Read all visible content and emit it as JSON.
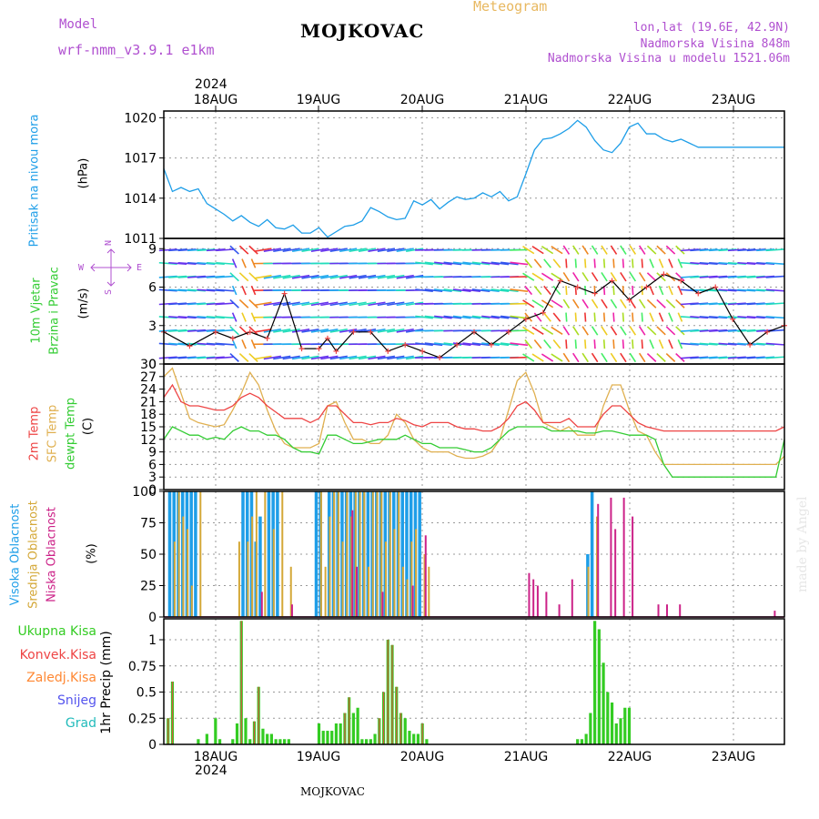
{
  "header": {
    "model_label": "Model",
    "model_name": "wrf-nmm_v3.9.1 e1km",
    "title": "MOJKOVAC",
    "subtitle": "Meteogram",
    "lonlat": "lon,lat (19.6E, 42.9N)",
    "elevation": "Nadmorska Visina 848m",
    "model_elevation": "Nadmorska Visina u modelu 1521.06m",
    "year": "2024"
  },
  "footer": {
    "station": "MOJKOVAC",
    "year": "2024",
    "credit": "made by Angel"
  },
  "colors": {
    "pressure": "#1e9ee8",
    "temp2m": "#ee4444",
    "sfc_temp": "#e0b050",
    "dewpoint": "#33cc33",
    "high_cloud": "#1e9ee8",
    "mid_cloud": "#d4a838",
    "low_cloud": "#cc2288",
    "wind_line": "#000000",
    "wind_cross": "#ee4444",
    "precip_total": "#33cc22",
    "precip_conv": "#ee4444",
    "precip_frz": "#ff8833",
    "snow": "#5555ee",
    "hail": "#22bbbb",
    "text_purple": "#b050d0",
    "text_orange": "#e8b860"
  },
  "panels": {
    "pressure": {
      "label": "Pritisak na nivou mora",
      "unit": "(hPa)"
    },
    "wind": {
      "label1": "10m Vjetar",
      "label2": "Brzina i Pravac",
      "unit": "(m/s)",
      "compass_n": "N",
      "compass_s": "S",
      "compass_w": "W",
      "compass_e": "E"
    },
    "temp": {
      "label1": "2m Temp",
      "label2": "SFC Temp",
      "label3": "dewpt Temp",
      "unit": "(C)"
    },
    "cloud": {
      "label1": "Visoka Oblacnost",
      "label2": "Srednja Oblacnost",
      "label3": "Niska Oblacnost",
      "unit": "(%)"
    },
    "precip": {
      "axis_label": "1hr Precip (mm)",
      "legend": [
        "Ukupna Kisa",
        "Konvek.Kisa",
        "Zaledj.Kisa",
        "Snijeg",
        "Grad"
      ]
    }
  },
  "chart_data": [
    {
      "type": "line",
      "name": "pressure",
      "x_labels": [
        "18AUG",
        "19AUG",
        "20AUG",
        "21AUG",
        "22AUG",
        "23AUG"
      ],
      "ylabel": "(hPa)",
      "ylim": [
        1011,
        1020.5
      ],
      "yticks": [
        1011,
        1014,
        1017,
        1020
      ],
      "grid": true,
      "x_range_hours": [
        0,
        144
      ],
      "x": [
        0,
        2,
        4,
        6,
        8,
        10,
        12,
        14,
        16,
        18,
        20,
        22,
        24,
        26,
        28,
        30,
        32,
        34,
        36,
        38,
        40,
        42,
        44,
        46,
        48,
        50,
        52,
        54,
        56,
        58,
        60,
        62,
        64,
        66,
        68,
        70,
        72,
        74,
        76,
        78,
        80,
        82,
        84,
        86,
        88,
        90,
        92,
        94,
        96,
        98,
        100,
        102,
        104,
        106,
        108,
        110,
        112,
        114,
        116,
        118,
        120,
        122,
        124,
        126,
        128,
        130,
        132,
        134,
        136,
        138,
        140,
        142,
        144
      ],
      "values": [
        1016.2,
        1014.5,
        1014.8,
        1014.5,
        1014.7,
        1013.6,
        1013.2,
        1012.8,
        1012.3,
        1012.7,
        1012.2,
        1011.9,
        1012.4,
        1011.8,
        1011.7,
        1012.0,
        1011.4,
        1011.4,
        1011.8,
        1011.1,
        1011.5,
        1011.9,
        1012.0,
        1012.3,
        1013.3,
        1013.0,
        1012.6,
        1012.4,
        1012.5,
        1013.8,
        1013.5,
        1013.9,
        1013.2,
        1013.7,
        1014.1,
        1013.9,
        1014.0,
        1014.4,
        1014.1,
        1014.5,
        1013.8,
        1014.1,
        1015.8,
        1017.6,
        1018.4,
        1018.5,
        1018.8,
        1019.2,
        1019.8,
        1019.3,
        1018.3,
        1017.6,
        1017.4,
        1018.1,
        1019.3,
        1019.6,
        1018.8,
        1018.8,
        1018.4,
        1018.2,
        1018.4,
        1018.1,
        1017.8,
        1017.8,
        1017.8,
        1017.8,
        1017.8,
        1017.8,
        1017.8,
        1017.8,
        1017.8,
        1017.8,
        1017.8
      ]
    },
    {
      "type": "line",
      "name": "wind",
      "ylabel": "(m/s)",
      "ylim": [
        0,
        9.8
      ],
      "yticks": [
        0,
        3,
        6,
        9
      ],
      "grid": true,
      "x_range_hours": [
        0,
        144
      ],
      "series": [
        {
          "name": "wind_speed",
          "x": [
            0,
            6,
            12,
            16,
            20,
            24,
            28,
            32,
            36,
            38,
            40,
            44,
            48,
            52,
            56,
            60,
            64,
            68,
            72,
            76,
            80,
            84,
            88,
            92,
            96,
            100,
            104,
            108,
            112,
            116,
            120,
            124,
            128,
            132,
            136,
            140,
            144
          ],
          "values": [
            2.5,
            1.4,
            2.5,
            2.0,
            2.5,
            2.0,
            5.5,
            1.2,
            1.2,
            2.0,
            1.0,
            2.5,
            2.5,
            1.0,
            1.5,
            1.0,
            0.5,
            1.5,
            2.5,
            1.5,
            2.5,
            3.5,
            4.0,
            6.5,
            6.0,
            5.5,
            6.5,
            5.0,
            6.0,
            7.0,
            6.5,
            5.5,
            6.0,
            3.5,
            1.5,
            2.5,
            3.0
          ]
        }
      ]
    },
    {
      "type": "line",
      "name": "temperature",
      "ylabel": "(C)",
      "ylim": [
        0,
        30
      ],
      "yticks": [
        0,
        3,
        6,
        9,
        12,
        15,
        18,
        21,
        24,
        27,
        30
      ],
      "grid": true,
      "x_range_hours": [
        0,
        144
      ],
      "x": [
        0,
        2,
        4,
        6,
        8,
        10,
        12,
        14,
        16,
        18,
        20,
        22,
        24,
        26,
        28,
        30,
        32,
        34,
        36,
        38,
        40,
        42,
        44,
        46,
        48,
        50,
        52,
        54,
        56,
        58,
        60,
        62,
        64,
        66,
        68,
        70,
        72,
        74,
        76,
        78,
        80,
        82,
        84,
        86,
        88,
        90,
        92,
        94,
        96,
        98,
        100,
        102,
        104,
        106,
        108,
        110,
        112,
        114,
        116,
        118,
        120,
        122,
        124,
        126,
        128,
        130,
        132,
        134,
        136,
        138,
        140,
        142,
        144
      ],
      "series": [
        {
          "name": "2m_temp",
          "values": [
            22,
            25,
            21,
            20,
            20,
            19.5,
            19,
            19,
            20,
            22,
            23,
            22,
            20,
            18.5,
            17,
            17,
            17,
            16,
            17,
            20,
            20,
            18,
            16,
            16,
            15.5,
            16,
            16,
            17,
            16.5,
            15.5,
            15,
            16,
            16,
            16,
            15,
            14.5,
            14.5,
            14,
            14,
            15,
            17,
            20,
            21,
            19,
            16,
            16,
            16,
            17,
            15,
            15,
            15,
            18,
            20,
            20,
            18,
            16,
            15,
            14.5,
            14,
            14,
            14,
            14,
            14,
            14,
            14,
            14,
            14,
            14,
            14,
            14,
            14,
            14,
            15
          ]
        },
        {
          "name": "sfc_temp",
          "values": [
            27,
            29,
            23,
            17,
            16,
            15.5,
            15,
            15.5,
            19,
            23,
            28,
            25,
            19,
            14,
            11,
            10,
            10,
            10,
            11,
            20,
            21,
            16,
            12,
            12,
            11,
            11,
            13,
            18,
            16,
            12,
            10,
            9,
            9,
            9,
            8,
            7.5,
            7.5,
            8,
            9,
            12,
            19,
            26,
            28,
            23,
            16,
            15,
            14,
            15,
            13,
            13,
            13,
            20,
            25,
            25,
            19,
            14,
            13,
            9,
            6,
            6,
            6,
            6,
            6,
            6,
            6,
            6,
            6,
            6,
            6,
            6,
            6,
            6,
            8
          ]
        },
        {
          "name": "dewpt_temp",
          "values": [
            12,
            15,
            14,
            13,
            13,
            12,
            12.5,
            12,
            14,
            15,
            14,
            14,
            13,
            13,
            12,
            10,
            9,
            9,
            8.5,
            13,
            13,
            12,
            11,
            11,
            11.5,
            12,
            12,
            12,
            13,
            12,
            11,
            11,
            10,
            10,
            10,
            9.5,
            9,
            9,
            10,
            12,
            14,
            15,
            15,
            15,
            15,
            14,
            14,
            14,
            14,
            13.5,
            13.5,
            14,
            14,
            13.5,
            13,
            13,
            13,
            12,
            6,
            3,
            3,
            3,
            3,
            3,
            3,
            3,
            3,
            3,
            3,
            3,
            3,
            3,
            12
          ]
        }
      ]
    },
    {
      "type": "bar",
      "name": "cloud_cover",
      "ylabel": "(%)",
      "ylim": [
        0,
        100
      ],
      "yticks": [
        0,
        25,
        50,
        75,
        100
      ],
      "grid": true,
      "x_range_hours": [
        0,
        144
      ],
      "series": [
        {
          "name": "visoka_oblacnost",
          "x": [
            1,
            2,
            3,
            4,
            5,
            6,
            7,
            18,
            19,
            20,
            21,
            22,
            24,
            25,
            26,
            35,
            36,
            38,
            39,
            40,
            41,
            42,
            43,
            44,
            45,
            46,
            47,
            48,
            49,
            50,
            51,
            52,
            53,
            54,
            55,
            56,
            57,
            58,
            59,
            98,
            99
          ],
          "values": [
            100,
            100,
            100,
            100,
            100,
            100,
            100,
            100,
            100,
            100,
            60,
            80,
            100,
            100,
            100,
            100,
            100,
            100,
            100,
            100,
            100,
            100,
            100,
            100,
            100,
            100,
            100,
            100,
            100,
            100,
            100,
            100,
            100,
            100,
            100,
            100,
            100,
            100,
            100,
            50,
            100
          ]
        },
        {
          "name": "srednja_oblacnost",
          "x": [
            2,
            3,
            4,
            5,
            6,
            8,
            17,
            19,
            20,
            21,
            23,
            25,
            27,
            29,
            36,
            37,
            38,
            39,
            40,
            41,
            42,
            43,
            44,
            45,
            46,
            47,
            48,
            49,
            50,
            51,
            52,
            53,
            54,
            55,
            56,
            57,
            58,
            60,
            61,
            98,
            100
          ],
          "values": [
            60,
            100,
            80,
            70,
            25,
            100,
            60,
            60,
            80,
            100,
            100,
            70,
            100,
            40,
            100,
            40,
            80,
            100,
            100,
            60,
            100,
            80,
            100,
            100,
            100,
            40,
            100,
            100,
            100,
            60,
            100,
            70,
            100,
            40,
            30,
            60,
            70,
            50,
            40,
            40,
            80
          ]
        },
        {
          "name": "niska_oblacnost",
          "x": [
            22,
            29,
            43,
            44,
            50,
            57,
            60,
            84,
            85,
            86,
            88,
            91,
            94,
            100,
            103,
            104,
            106,
            108,
            114,
            116,
            119,
            141
          ],
          "values": [
            20,
            10,
            85,
            40,
            20,
            25,
            65,
            35,
            30,
            25,
            20,
            10,
            30,
            90,
            95,
            70,
            95,
            80,
            10,
            10,
            10,
            5
          ]
        }
      ]
    },
    {
      "type": "bar",
      "name": "precipitation",
      "ylabel": "1hr Precip (mm)",
      "ylim": [
        0,
        1.2
      ],
      "yticks": [
        0,
        0.25,
        0.5,
        0.75,
        1
      ],
      "grid": true,
      "x_range_hours": [
        0,
        144
      ],
      "series": [
        {
          "name": "Ukupna Kisa",
          "x": [
            1,
            2,
            8,
            10,
            12,
            13,
            16,
            17,
            18,
            19,
            20,
            21,
            22,
            23,
            24,
            25,
            26,
            27,
            28,
            29,
            36,
            37,
            38,
            39,
            40,
            41,
            42,
            43,
            44,
            45,
            46,
            47,
            48,
            49,
            50,
            51,
            52,
            53,
            54,
            55,
            56,
            57,
            58,
            59,
            60,
            61,
            96,
            97,
            98,
            99,
            100,
            101,
            102,
            103,
            104,
            105,
            106,
            107,
            108
          ],
          "values": [
            0.25,
            0.6,
            0.05,
            0.1,
            0.25,
            0.05,
            0.05,
            0.2,
            1.18,
            0.25,
            0.05,
            0.22,
            0.55,
            0.15,
            0.1,
            0.1,
            0.05,
            0.05,
            0.05,
            0.05,
            0.2,
            0.13,
            0.13,
            0.13,
            0.2,
            0.2,
            0.3,
            0.45,
            0.3,
            0.35,
            0.05,
            0.05,
            0.05,
            0.1,
            0.25,
            0.5,
            1.0,
            0.95,
            0.55,
            0.3,
            0.25,
            0.13,
            0.1,
            0.1,
            0.2,
            0.05,
            0.05,
            0.05,
            0.1,
            0.3,
            1.18,
            1.1,
            0.78,
            0.5,
            0.4,
            0.2,
            0.25,
            0.35,
            0.35
          ]
        },
        {
          "name": "Konvek.Kisa",
          "x": [
            1,
            2,
            18,
            21,
            22,
            42,
            43,
            50,
            51,
            52,
            53,
            54,
            55,
            60
          ],
          "values": [
            0.25,
            0.6,
            1.18,
            0.22,
            0.55,
            0.3,
            0.45,
            0.25,
            0.5,
            1.0,
            0.95,
            0.55,
            0.3,
            0.2
          ]
        },
        {
          "name": "Zaledj.Kisa",
          "x": [],
          "values": []
        },
        {
          "name": "Snijeg",
          "x": [],
          "values": []
        },
        {
          "name": "Grad",
          "x": [],
          "values": []
        }
      ]
    }
  ]
}
